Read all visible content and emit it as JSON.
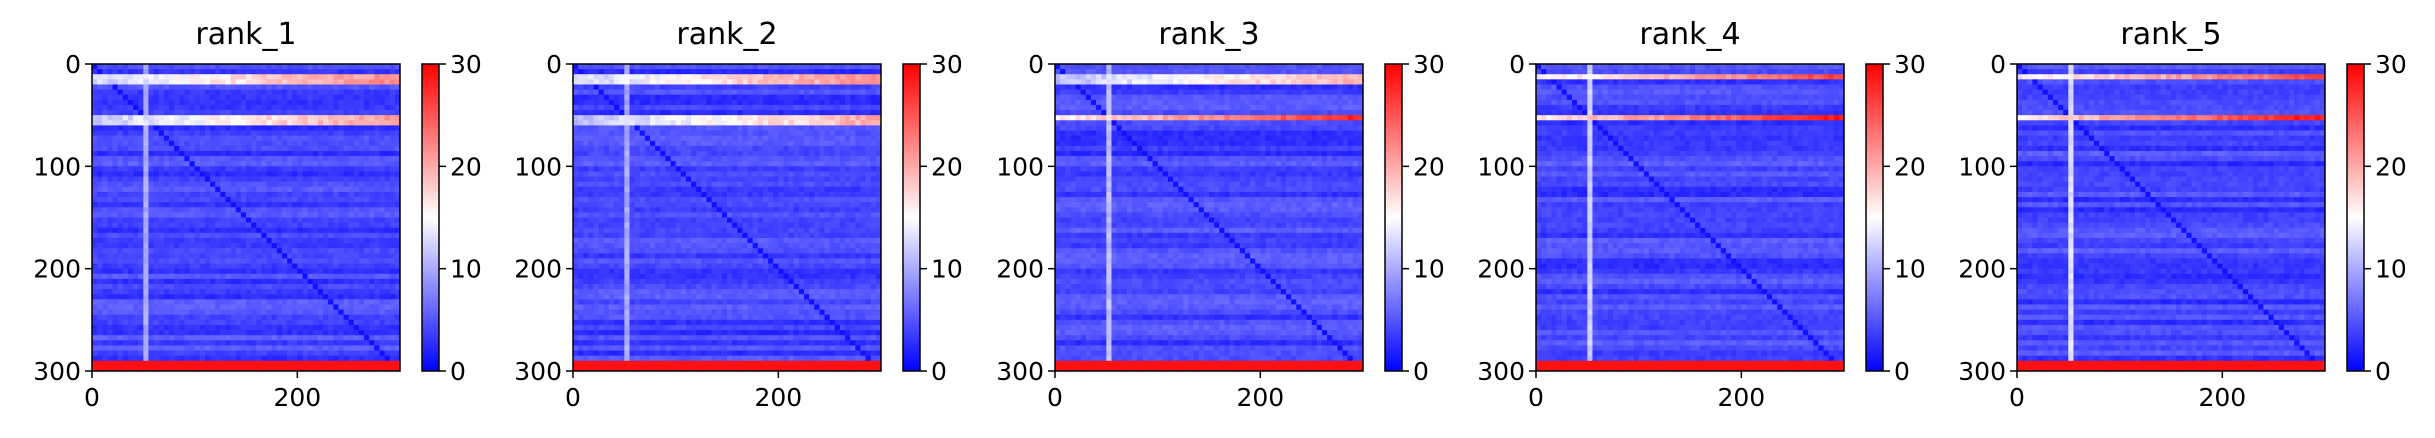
{
  "chart_data": [
    {
      "type": "heatmap",
      "title": "rank_1",
      "xlabel": "",
      "ylabel": "",
      "x_range": [
        0,
        300
      ],
      "y_range": [
        0,
        300
      ],
      "y_inverted": true,
      "x_ticks": [
        0,
        200
      ],
      "y_ticks": [
        0,
        100,
        200,
        300
      ],
      "colormap": "bwr",
      "colorbar": {
        "range": [
          0,
          30
        ],
        "ticks": [
          0,
          10,
          20,
          30
        ]
      },
      "grid": false,
      "features": {
        "dominant_value": 4,
        "diagonal_value": 1,
        "high_rows": [
          {
            "y": 15,
            "value": 22
          },
          {
            "y": 55,
            "value": 21
          }
        ],
        "bottom_band": {
          "y": 297,
          "value": 29
        },
        "bright_column": {
          "x": 54,
          "value": 10
        }
      }
    },
    {
      "type": "heatmap",
      "title": "rank_2",
      "xlabel": "",
      "ylabel": "",
      "x_range": [
        0,
        300
      ],
      "y_range": [
        0,
        300
      ],
      "y_inverted": true,
      "x_ticks": [
        0,
        200
      ],
      "y_ticks": [
        0,
        100,
        200,
        300
      ],
      "colormap": "bwr",
      "colorbar": {
        "range": [
          0,
          30
        ],
        "ticks": [
          0,
          10,
          20,
          30
        ]
      },
      "grid": false,
      "features": {
        "dominant_value": 4,
        "diagonal_value": 1,
        "high_rows": [
          {
            "y": 15,
            "value": 22
          },
          {
            "y": 55,
            "value": 20
          }
        ],
        "bottom_band": {
          "y": 297,
          "value": 29
        },
        "bright_column": {
          "x": 54,
          "value": 10
        }
      }
    },
    {
      "type": "heatmap",
      "title": "rank_3",
      "xlabel": "",
      "ylabel": "",
      "x_range": [
        0,
        300
      ],
      "y_range": [
        0,
        300
      ],
      "y_inverted": true,
      "x_ticks": [
        0,
        200
      ],
      "y_ticks": [
        0,
        100,
        200,
        300
      ],
      "colormap": "bwr",
      "colorbar": {
        "range": [
          0,
          30
        ],
        "ticks": [
          0,
          10,
          20,
          30
        ]
      },
      "grid": false,
      "features": {
        "dominant_value": 4,
        "diagonal_value": 1,
        "high_rows": [
          {
            "y": 15,
            "value": 20
          },
          {
            "y": 53,
            "value": 28
          }
        ],
        "bottom_band": {
          "y": 297,
          "value": 29
        },
        "bright_column": {
          "x": 54,
          "value": 11
        }
      }
    },
    {
      "type": "heatmap",
      "title": "rank_4",
      "xlabel": "",
      "ylabel": "",
      "x_range": [
        0,
        300
      ],
      "y_range": [
        0,
        300
      ],
      "y_inverted": true,
      "x_ticks": [
        0,
        200
      ],
      "y_ticks": [
        0,
        100,
        200,
        300
      ],
      "colormap": "bwr",
      "colorbar": {
        "range": [
          0,
          30
        ],
        "ticks": [
          0,
          10,
          20,
          30
        ]
      },
      "grid": false,
      "features": {
        "dominant_value": 4,
        "diagonal_value": 1,
        "high_rows": [
          {
            "y": 12,
            "value": 26
          },
          {
            "y": 53,
            "value": 29
          }
        ],
        "bottom_band": {
          "y": 297,
          "value": 29
        },
        "bright_column": {
          "x": 54,
          "value": 12
        }
      }
    },
    {
      "type": "heatmap",
      "title": "rank_5",
      "xlabel": "",
      "ylabel": "",
      "x_range": [
        0,
        300
      ],
      "y_range": [
        0,
        300
      ],
      "y_inverted": true,
      "x_ticks": [
        0,
        200
      ],
      "y_ticks": [
        0,
        100,
        200,
        300
      ],
      "colormap": "bwr",
      "colorbar": {
        "range": [
          0,
          30
        ],
        "ticks": [
          0,
          10,
          20,
          30
        ]
      },
      "grid": false,
      "features": {
        "dominant_value": 4,
        "diagonal_value": 1,
        "high_rows": [
          {
            "y": 12,
            "value": 26
          },
          {
            "y": 53,
            "value": 29
          }
        ],
        "bottom_band": {
          "y": 297,
          "value": 29
        },
        "bright_column": {
          "x": 54,
          "value": 13
        }
      }
    }
  ]
}
